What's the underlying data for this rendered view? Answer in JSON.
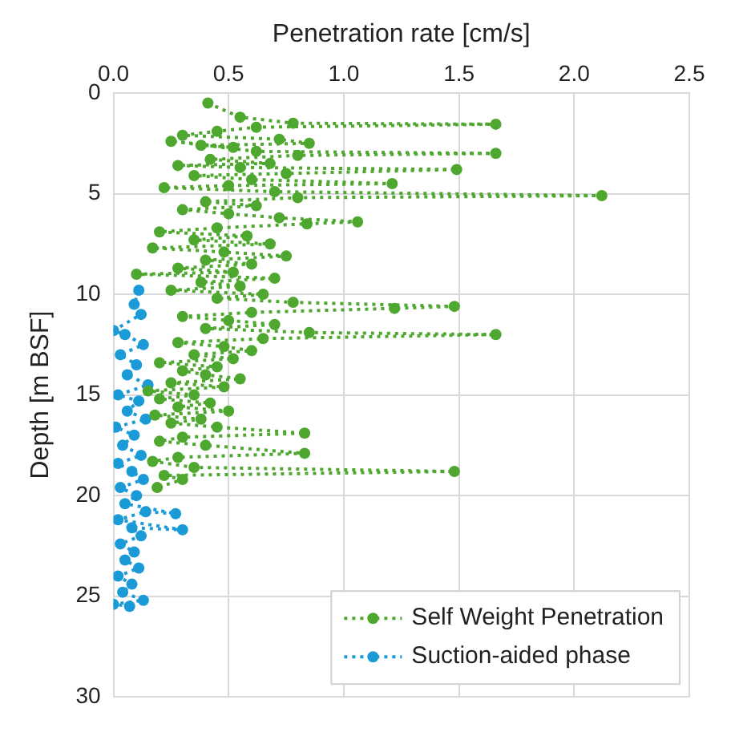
{
  "chart_data": {
    "type": "line",
    "xlabel": "Penetration rate [cm/s]",
    "ylabel": "Depth [m BSF]",
    "xlim": [
      0,
      2.5
    ],
    "xticks": [
      {
        "value": 0,
        "label": "0.0"
      },
      {
        "value": 0.5,
        "label": "0.5"
      },
      {
        "value": 1,
        "label": "1.0"
      },
      {
        "value": 1.5,
        "label": "1.5"
      },
      {
        "value": 2,
        "label": "2.0"
      },
      {
        "value": 2.5,
        "label": "2.5"
      }
    ],
    "ylim": [
      30,
      0
    ],
    "yticks": [
      0,
      5,
      10,
      15,
      20,
      25,
      30
    ],
    "grid": true,
    "legend": "bottom right",
    "marker": "circle",
    "line_style": "dotted",
    "series": [
      {
        "name": "Self Weight Penetration",
        "color": "#4ea72e",
        "x": [
          0.41,
          0.55,
          0.78,
          1.66,
          0.62,
          0.45,
          0.3,
          0.72,
          0.85,
          0.38,
          0.52,
          0.25,
          0.62,
          1.66,
          0.8,
          0.42,
          0.68,
          0.28,
          0.55,
          1.49,
          0.75,
          0.35,
          0.6,
          1.21,
          0.5,
          0.22,
          0.7,
          2.12,
          0.8,
          0.4,
          0.62,
          0.3,
          0.5,
          0.72,
          1.06,
          0.84,
          0.45,
          0.2,
          0.58,
          0.35,
          0.68,
          0.17,
          0.48,
          0.75,
          0.4,
          0.6,
          0.28,
          0.52,
          0.1,
          0.7,
          0.38,
          0.55,
          0.25,
          0.65,
          0.45,
          0.78,
          1.48,
          1.22,
          0.6,
          0.3,
          0.5,
          0.7,
          0.4,
          0.85,
          1.66,
          0.65,
          0.28,
          0.48,
          0.6,
          0.35,
          0.52,
          0.2,
          0.45,
          0.3,
          0.4,
          0.55,
          0.25,
          0.48,
          0.15,
          0.35,
          0.2,
          0.42,
          0.28,
          0.5,
          0.18,
          0.38,
          0.25,
          0.45,
          0.83,
          0.3,
          0.2,
          0.4,
          0.83,
          0.28,
          0.17,
          0.35,
          1.48,
          0.22,
          0.3,
          0.19
        ],
        "values": [
          0.5,
          1.2,
          1.5,
          1.55,
          1.7,
          1.9,
          2.1,
          2.3,
          2.5,
          2.6,
          2.7,
          2.4,
          2.9,
          3.0,
          3.1,
          3.3,
          3.5,
          3.6,
          3.7,
          3.8,
          4.0,
          4.1,
          4.3,
          4.5,
          4.6,
          4.7,
          4.9,
          5.1,
          5.2,
          5.4,
          5.6,
          5.8,
          6.0,
          6.2,
          6.4,
          6.5,
          6.7,
          6.9,
          7.1,
          7.3,
          7.5,
          7.7,
          7.9,
          8.1,
          8.3,
          8.5,
          8.7,
          8.9,
          9.0,
          9.2,
          9.4,
          9.6,
          9.8,
          10.0,
          10.2,
          10.4,
          10.6,
          10.7,
          10.9,
          11.1,
          11.3,
          11.5,
          11.7,
          11.9,
          12.0,
          12.2,
          12.4,
          12.6,
          12.8,
          13.0,
          13.2,
          13.4,
          13.6,
          13.8,
          14.0,
          14.2,
          14.4,
          14.6,
          14.8,
          15.0,
          15.2,
          15.4,
          15.6,
          15.8,
          16.0,
          16.2,
          16.4,
          16.6,
          16.9,
          17.1,
          17.3,
          17.5,
          17.9,
          18.1,
          18.3,
          18.6,
          18.8,
          19.0,
          19.2,
          19.6
        ]
      },
      {
        "name": "Suction-aided phase",
        "color": "#1a9ad6",
        "x": [
          0.11,
          0.09,
          0.12,
          0.0,
          0.05,
          0.13,
          0.03,
          0.1,
          0.06,
          0.15,
          0.02,
          0.11,
          0.06,
          0.14,
          0.01,
          0.09,
          0.04,
          0.12,
          0.02,
          0.08,
          0.13,
          0.03,
          0.1,
          0.05,
          0.27,
          0.14,
          0.02,
          0.3,
          0.08,
          0.12,
          0.03,
          0.09,
          0.05,
          0.11,
          0.02,
          0.08,
          0.04,
          0.13,
          0.0,
          0.07
        ],
        "values": [
          9.8,
          10.5,
          11.0,
          11.8,
          12.0,
          12.5,
          13.0,
          13.5,
          14.0,
          14.5,
          15.0,
          15.3,
          15.8,
          16.2,
          16.6,
          17.0,
          17.5,
          18.0,
          18.4,
          18.8,
          19.2,
          19.6,
          20.0,
          20.4,
          20.9,
          20.8,
          21.2,
          21.7,
          21.6,
          22.0,
          22.4,
          22.8,
          23.2,
          23.6,
          24.0,
          24.4,
          24.8,
          25.2,
          25.4,
          25.5
        ]
      }
    ]
  }
}
